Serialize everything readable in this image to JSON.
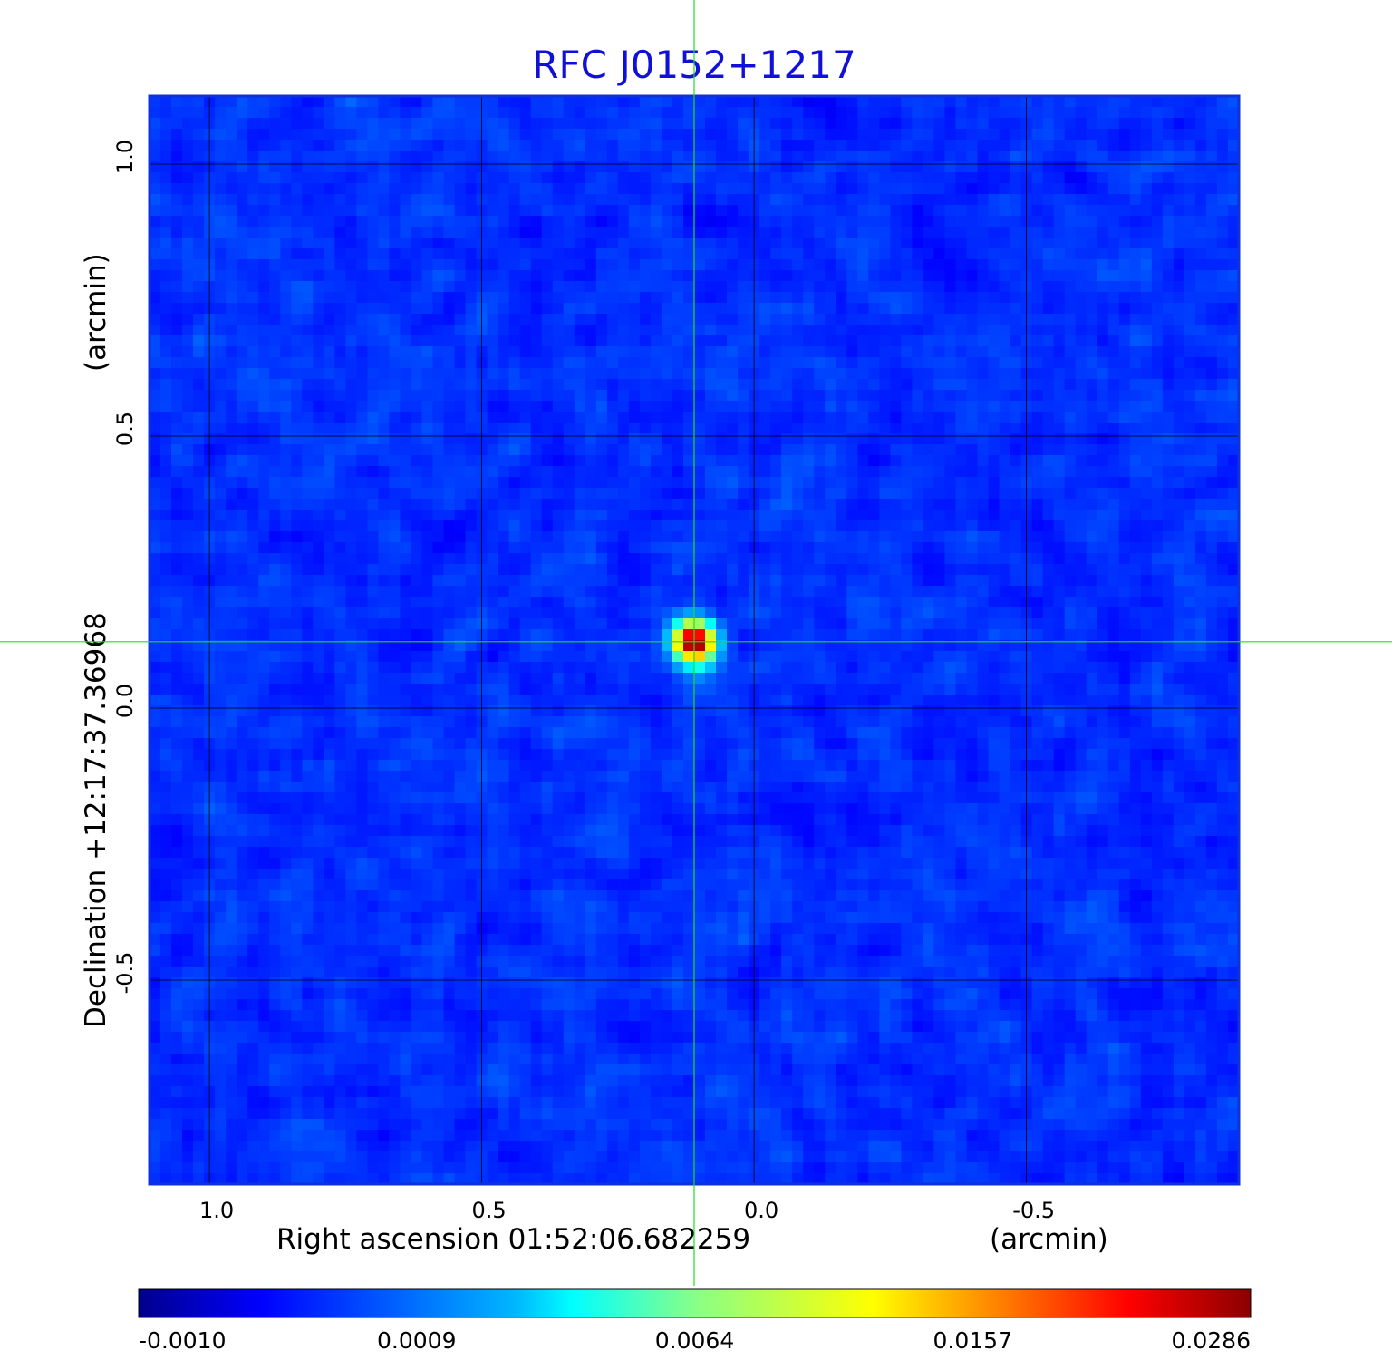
{
  "chart_data": {
    "type": "heatmap",
    "title": "RFC J0152+1217",
    "xlabel": "Right ascension  01:52:06.682259",
    "xunit": "(arcmin)",
    "ylabel": "Declination  +12:17:37.36968",
    "yunit": "(arcmin)",
    "xlim": [
      1.11,
      -0.89
    ],
    "ylim": [
      -0.875,
      1.125
    ],
    "x_ticks": [
      {
        "value": 1.0,
        "label": "1.0"
      },
      {
        "value": 0.5,
        "label": "0.5"
      },
      {
        "value": 0.0,
        "label": "0.0"
      },
      {
        "value": -0.5,
        "label": "-0.5"
      }
    ],
    "y_ticks": [
      {
        "value": 1.0,
        "label": "1.0"
      },
      {
        "value": 0.5,
        "label": "0.5"
      },
      {
        "value": 0.0,
        "label": "0.0"
      },
      {
        "value": -0.5,
        "label": "-0.5"
      }
    ],
    "grid": true,
    "colormap": "jet",
    "crosshair": {
      "x": 0.11,
      "y": 0.122,
      "color": "#22dd22"
    },
    "source_peak": {
      "x": 0.11,
      "y": 0.122,
      "value": 0.0286
    },
    "background_level": -0.0002,
    "colorbar": {
      "ticks": [
        "-0.0010",
        "0.0009",
        "0.0064",
        "0.0157",
        "0.0286"
      ]
    }
  }
}
